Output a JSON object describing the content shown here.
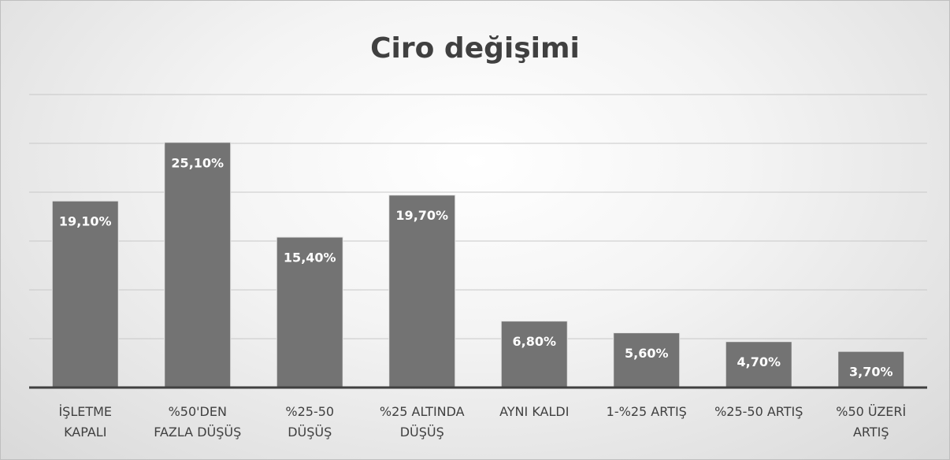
{
  "chart_data": {
    "type": "bar",
    "title": "Ciro değişimi",
    "categories": [
      "İŞLETME\nKAPALI",
      "%50'DEN\nFAZLA DÜŞÜŞ",
      "%25-50\nDÜŞÜŞ",
      "%25 ALTINDA\nDÜŞÜŞ",
      "AYNI KALDI",
      "1-%25 ARTIŞ",
      "%25-50 ARTIŞ",
      "%50 ÜZERİ\nARTIŞ"
    ],
    "values": [
      19.1,
      25.1,
      15.4,
      19.7,
      6.8,
      5.6,
      4.7,
      3.7
    ],
    "value_labels": [
      "19,10%",
      "25,10%",
      "15,40%",
      "19,70%",
      "6,80%",
      "5,60%",
      "4,70%",
      "3,70%"
    ],
    "color": "#737373",
    "ylim": [
      0,
      30
    ],
    "yticks": [
      0,
      5,
      10,
      15,
      20,
      25,
      30
    ],
    "grid": true
  }
}
